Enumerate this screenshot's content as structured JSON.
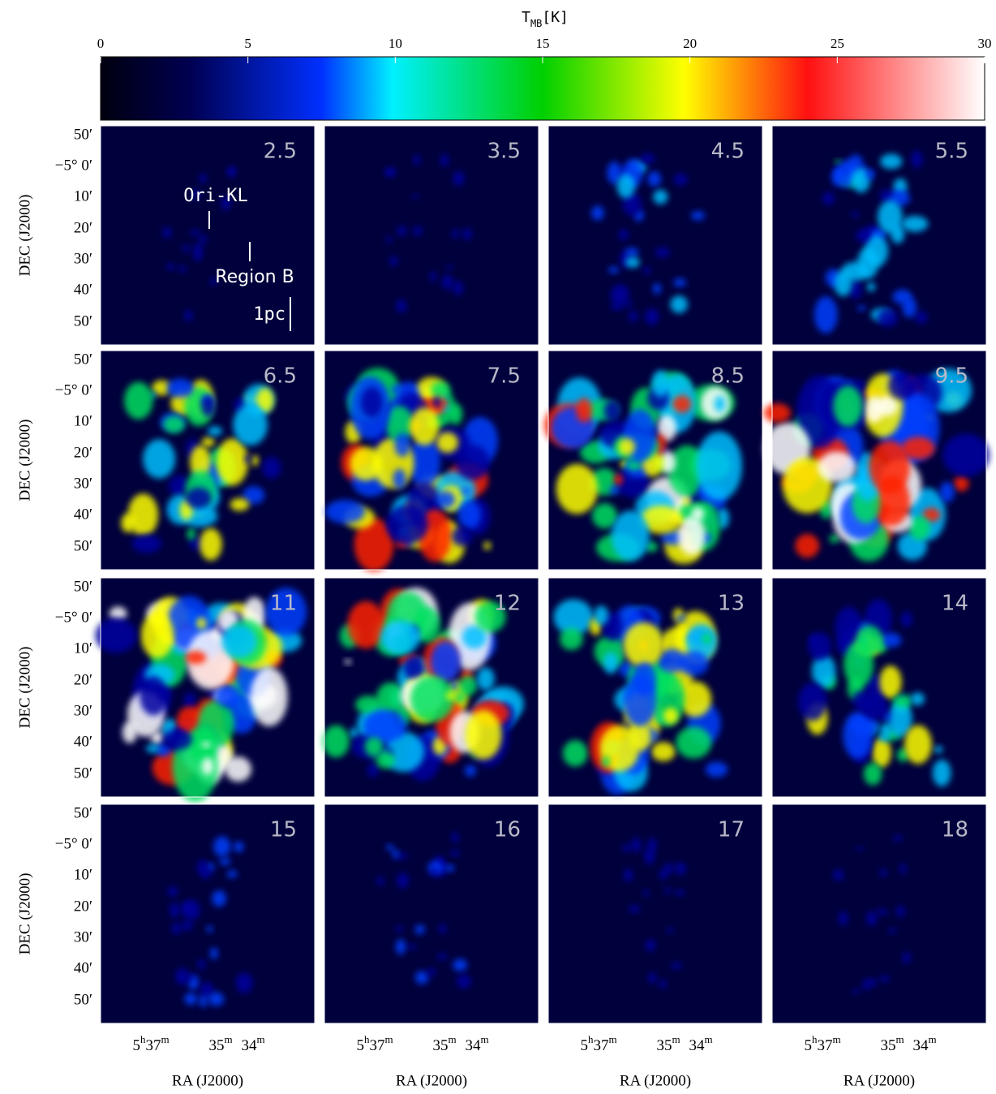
{
  "colorbar": {
    "label": {
      "symbol": "T",
      "subscript": "MB",
      "unit": "[K]"
    },
    "lim": [
      0,
      30
    ],
    "ticks": [
      0,
      5,
      10,
      15,
      20,
      25,
      30
    ]
  },
  "panels": [
    {
      "label": "2.5"
    },
    {
      "label": "3.5"
    },
    {
      "label": "4.5"
    },
    {
      "label": "5.5"
    },
    {
      "label": "6.5"
    },
    {
      "label": "7.5"
    },
    {
      "label": "8.5"
    },
    {
      "label": "9.5"
    },
    {
      "label": "11"
    },
    {
      "label": "12"
    },
    {
      "label": "13"
    },
    {
      "label": "14"
    },
    {
      "label": "15"
    },
    {
      "label": "16"
    },
    {
      "label": "17"
    },
    {
      "label": "18"
    }
  ],
  "annotations": {
    "source_1": "Ori-KL",
    "source_2": "Region B",
    "scale_bar": "1pc"
  },
  "y_axis": {
    "label": "DEC (J2000)",
    "ticks": [
      "50′",
      "−5° 0′",
      "10′",
      "20′",
      "30′",
      "40′",
      "50′"
    ]
  },
  "x_axis": {
    "label": "RA (J2000)",
    "ticks": [
      {
        "parts": [
          "5",
          "h",
          "37",
          "m"
        ]
      },
      {
        "parts": [
          "35",
          "m"
        ]
      },
      {
        "parts": [
          "34",
          "m"
        ]
      }
    ]
  }
}
